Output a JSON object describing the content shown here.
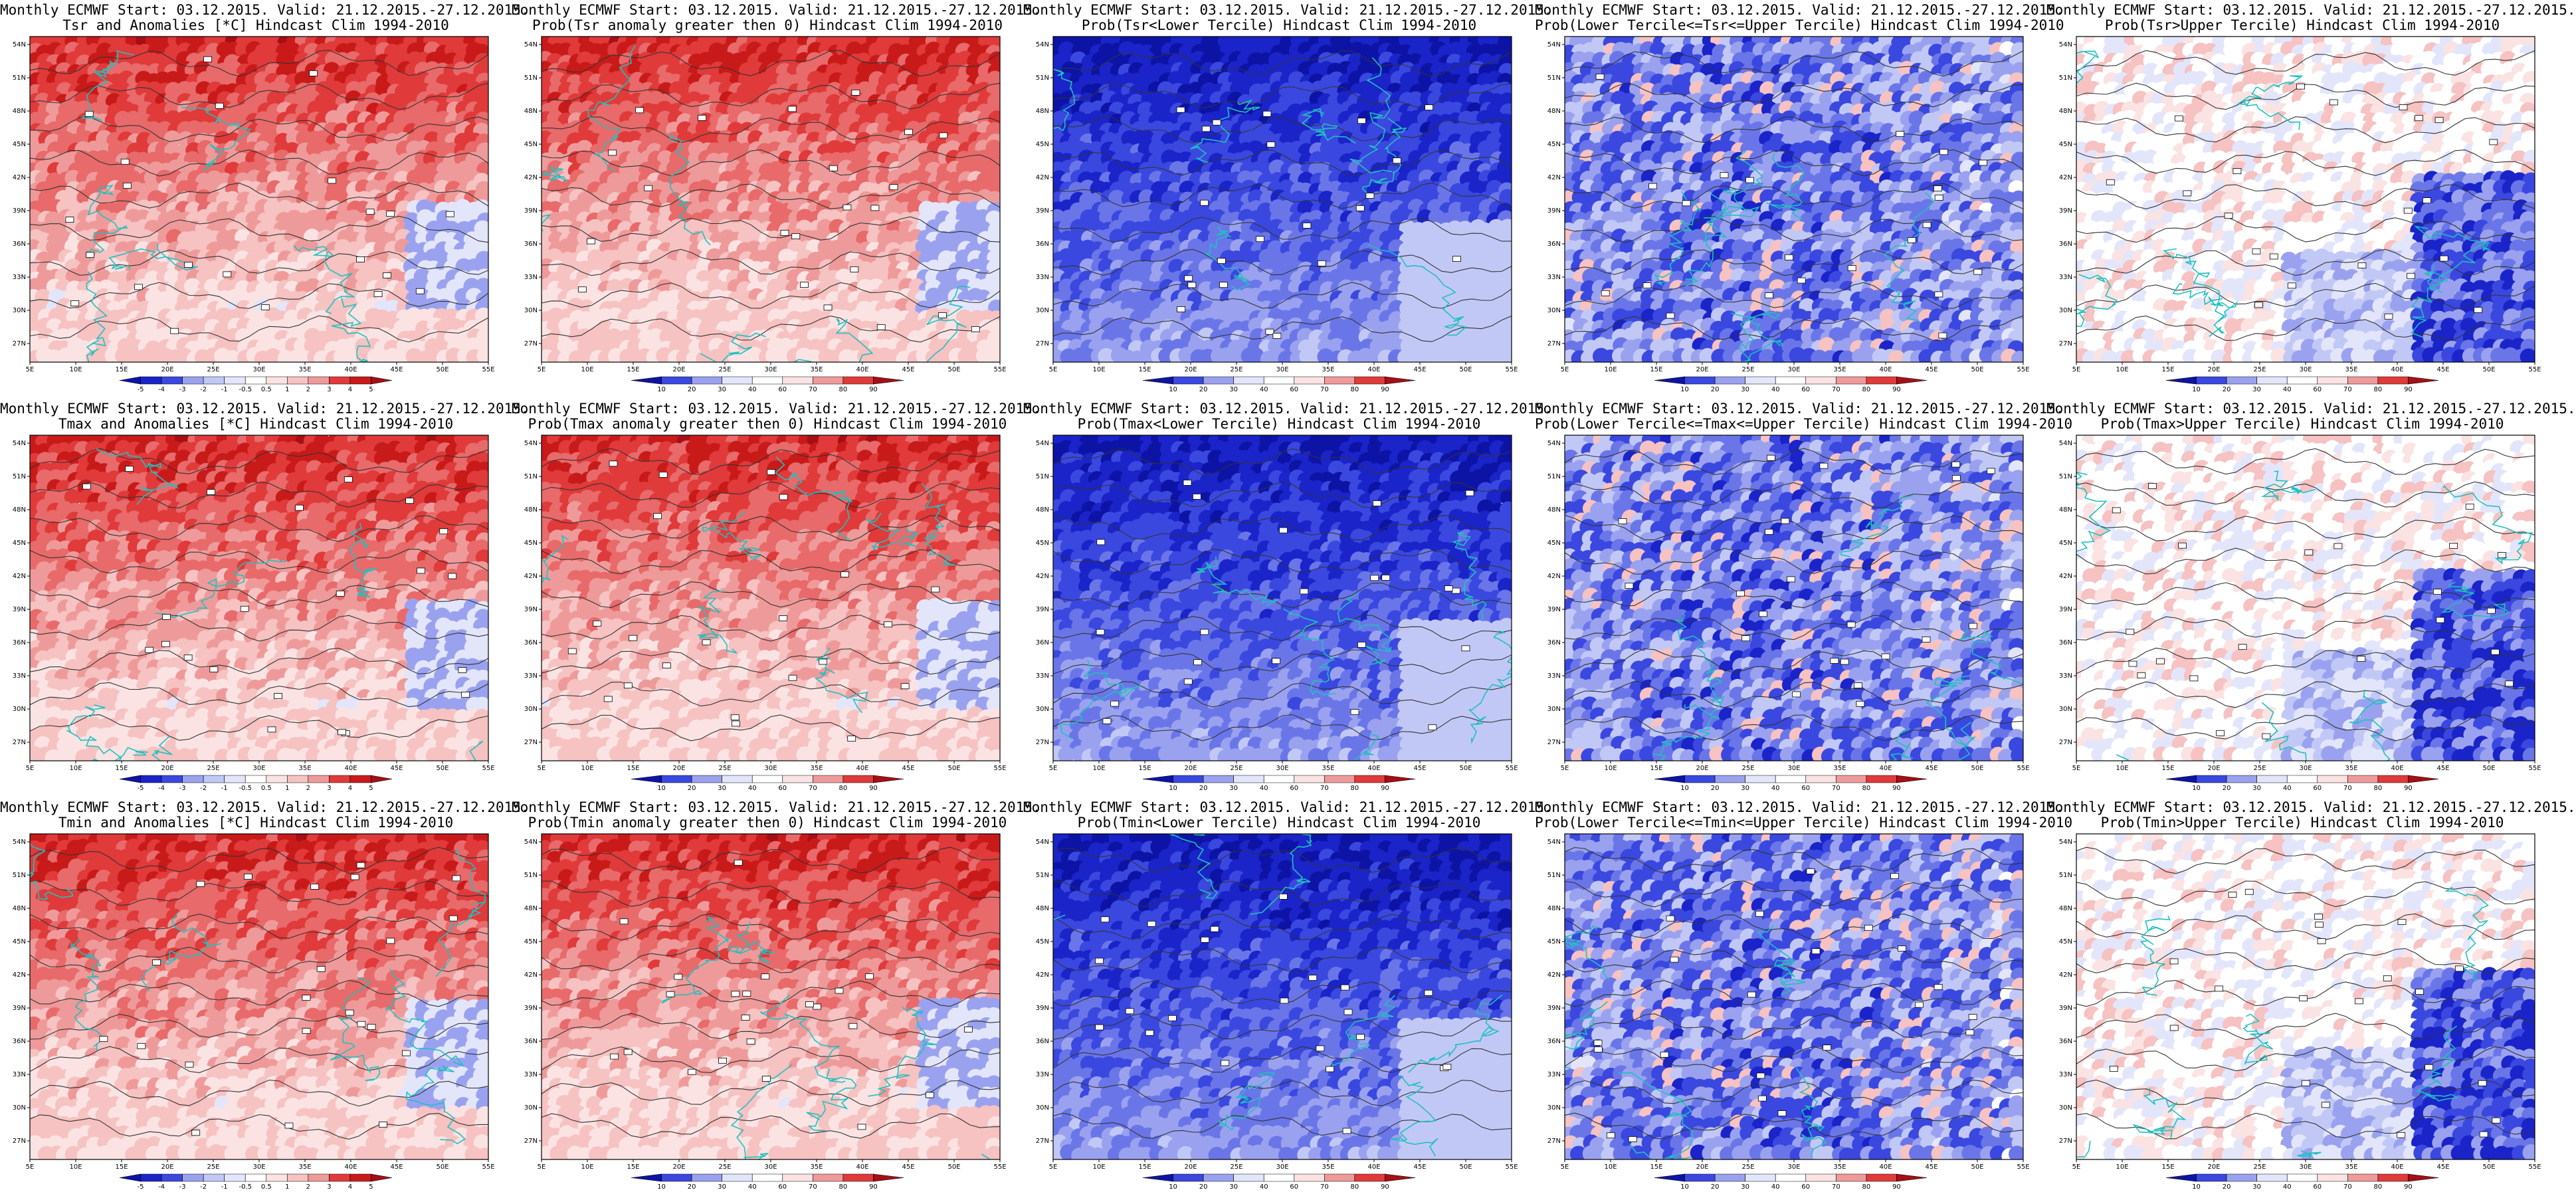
{
  "common": {
    "title_line1": "Monthly ECMWF Start: 03.12.2015. Valid: 21.12.2015.-27.12.2015.",
    "lon_ticks": [
      "5E",
      "10E",
      "15E",
      "20E",
      "25E",
      "30E",
      "35E",
      "40E",
      "45E",
      "50E",
      "55E"
    ],
    "lat_ticks": [
      "54N",
      "51N",
      "48N",
      "45N",
      "42N",
      "39N",
      "36N",
      "33N",
      "30N",
      "27N"
    ]
  },
  "colorbars": {
    "anomaly": [
      "-5",
      "-4",
      "-3",
      "-2",
      "-1",
      "-0.5",
      "0.5",
      "1",
      "2",
      "3",
      "4",
      "5"
    ],
    "probability": [
      "10",
      "20",
      "30",
      "40",
      "60",
      "70",
      "80",
      "90"
    ]
  },
  "colors": {
    "red_scale": [
      "#fbe3e3",
      "#f6c2c2",
      "#ef9a9a",
      "#e86a6a",
      "#e03a3a",
      "#c91a1a",
      "#a50f15"
    ],
    "blue_scale": [
      "#e3e6fb",
      "#c2c8f6",
      "#9aa2ef",
      "#6a76e8",
      "#3a48e0",
      "#1a24c9",
      "#0d14a5"
    ],
    "border": "#20c0c0",
    "contour": "#333333"
  },
  "panels": [
    {
      "row": 0,
      "col": 0,
      "title": "Tsr and Anomalies [*C] Hindcast Clim 1994-2010",
      "kind": "anomaly",
      "mode": "red"
    },
    {
      "row": 0,
      "col": 1,
      "title": "Prob(Tsr anomaly greater then 0) Hindcast Clim 1994-2010",
      "kind": "probability",
      "mode": "red"
    },
    {
      "row": 0,
      "col": 2,
      "title": "Prob(Tsr<Lower Tercile) Hindcast Clim 1994-2010",
      "kind": "probability",
      "mode": "blue"
    },
    {
      "row": 0,
      "col": 3,
      "title": "Prob(Lower Tercile<=Tsr<=Upper Tercile) Hindcast Clim 1994-2010",
      "kind": "probability",
      "mode": "mixblue"
    },
    {
      "row": 0,
      "col": 4,
      "title": "Prob(Tsr>Upper Tercile) Hindcast Clim 1994-2010",
      "kind": "probability",
      "mode": "mixred"
    },
    {
      "row": 1,
      "col": 0,
      "title": "Tmax and Anomalies [*C] Hindcast Clim 1994-2010",
      "kind": "anomaly",
      "mode": "red"
    },
    {
      "row": 1,
      "col": 1,
      "title": "Prob(Tmax anomaly greater then 0) Hindcast Clim 1994-2010",
      "kind": "probability",
      "mode": "red"
    },
    {
      "row": 1,
      "col": 2,
      "title": "Prob(Tmax<Lower Tercile) Hindcast Clim 1994-2010",
      "kind": "probability",
      "mode": "blue"
    },
    {
      "row": 1,
      "col": 3,
      "title": "Prob(Lower Tercile<=Tmax<=Upper Tercile) Hindcast Clim 1994-2010",
      "kind": "probability",
      "mode": "mixblue"
    },
    {
      "row": 1,
      "col": 4,
      "title": "Prob(Tmax>Upper Tercile) Hindcast Clim 1994-2010",
      "kind": "probability",
      "mode": "mixred"
    },
    {
      "row": 2,
      "col": 0,
      "title": "Tmin and Anomalies [*C] Hindcast Clim 1994-2010",
      "kind": "anomaly",
      "mode": "red"
    },
    {
      "row": 2,
      "col": 1,
      "title": "Prob(Tmin anomaly greater then 0) Hindcast Clim 1994-2010",
      "kind": "probability",
      "mode": "red"
    },
    {
      "row": 2,
      "col": 2,
      "title": "Prob(Tmin<Lower Tercile) Hindcast Clim 1994-2010",
      "kind": "probability",
      "mode": "blue"
    },
    {
      "row": 2,
      "col": 3,
      "title": "Prob(Lower Tercile<=Tmin<=Upper Tercile) Hindcast Clim 1994-2010",
      "kind": "probability",
      "mode": "mixblue"
    },
    {
      "row": 2,
      "col": 4,
      "title": "Prob(Tmin>Upper Tercile) Hindcast Clim 1994-2010",
      "kind": "probability",
      "mode": "mixred"
    }
  ]
}
